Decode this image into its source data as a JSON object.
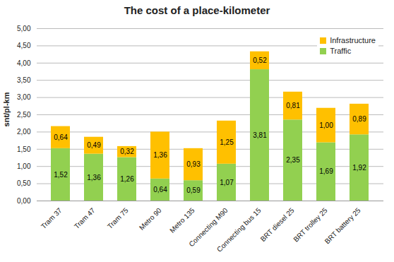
{
  "chart_data": {
    "type": "bar",
    "stacked": true,
    "title": "The cost of a place-kilometer",
    "y_label": "snt/pl-km",
    "categories": [
      "Tram 37",
      "Tram 47",
      "Tram 75",
      "Metro 90",
      "Metro 135",
      "Connecting M90",
      "Connecting bus 15",
      "BRT diesel 25",
      "BRT trolley 25",
      "BRT battery 25"
    ],
    "series": [
      {
        "name": "Traffic",
        "color": "#92D050",
        "values": [
          1.52,
          1.36,
          1.26,
          0.64,
          0.59,
          1.07,
          3.81,
          2.35,
          1.69,
          1.92
        ],
        "value_labels": [
          "1,52",
          "1,36",
          "1,26",
          "0,64",
          "0,59",
          "1,07",
          "3,81",
          "2,35",
          "1,69",
          "1,92"
        ]
      },
      {
        "name": "Infrastructure",
        "color": "#FFC000",
        "values": [
          0.64,
          0.49,
          0.32,
          1.36,
          0.93,
          1.25,
          0.52,
          0.81,
          1.0,
          0.89
        ],
        "value_labels": [
          "0,64",
          "0,49",
          "0,32",
          "1,36",
          "0,93",
          "1,25",
          "0,52",
          "0,81",
          "1,00",
          "0,89"
        ]
      }
    ],
    "ylim": [
      0,
      5
    ],
    "yticks": [
      {
        "value": 0,
        "label": "0,00"
      },
      {
        "value": 0.5,
        "label": "0,50"
      },
      {
        "value": 1,
        "label": "1,00"
      },
      {
        "value": 1.5,
        "label": "1,50"
      },
      {
        "value": 2,
        "label": "2,00"
      },
      {
        "value": 2.5,
        "label": "2,50"
      },
      {
        "value": 3,
        "label": "3,00"
      },
      {
        "value": 3.5,
        "label": "3,50"
      },
      {
        "value": 4,
        "label": "4,00"
      },
      {
        "value": 4.5,
        "label": "4,50"
      },
      {
        "value": 5,
        "label": "5,00"
      }
    ],
    "grid": true,
    "data_labels": true,
    "legend": "top-right"
  }
}
